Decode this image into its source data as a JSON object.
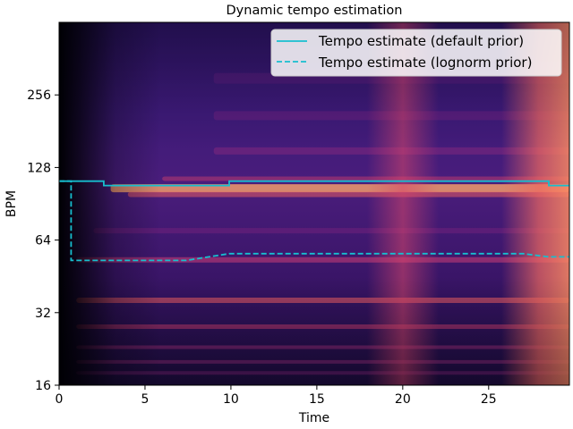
{
  "chart_data": {
    "type": "heatmap",
    "title": "Dynamic tempo estimation",
    "xlabel": "Time",
    "ylabel": "BPM",
    "xlim": [
      0,
      29.7
    ],
    "ylim": [
      16,
      512
    ],
    "yscale": "log2",
    "x_ticks": [
      0,
      5,
      10,
      15,
      20,
      25
    ],
    "x_tick_labels": [
      "0",
      "5",
      "10",
      "15",
      "20",
      "25"
    ],
    "y_ticks": [
      16,
      32,
      64,
      128,
      256
    ],
    "y_tick_labels": [
      "16",
      "32",
      "64",
      "128",
      "256"
    ],
    "colormap": "magma",
    "legend_position": "top-right",
    "series": [
      {
        "name": "Tempo estimate (default prior)",
        "style": "solid",
        "color": "#17becf",
        "x": [
          0,
          2.6,
          2.6,
          9.9,
          9.9,
          28.5,
          28.5,
          29.7
        ],
        "y": [
          112.3,
          112.3,
          107.7,
          107.7,
          112.3,
          112.3,
          107.7,
          107.7
        ]
      },
      {
        "name": "Tempo estimate (lognorm prior)",
        "style": "dashed",
        "color": "#17becf",
        "x": [
          0,
          0.7,
          0.7,
          7.4,
          9.9,
          27.0,
          28.5,
          29.7
        ],
        "y": [
          112.3,
          112.3,
          52.7,
          52.7,
          56.2,
          56.2,
          54.5,
          54.5
        ]
      }
    ],
    "colors": {
      "axes_bg": "#000004",
      "line": "#17becf"
    }
  }
}
